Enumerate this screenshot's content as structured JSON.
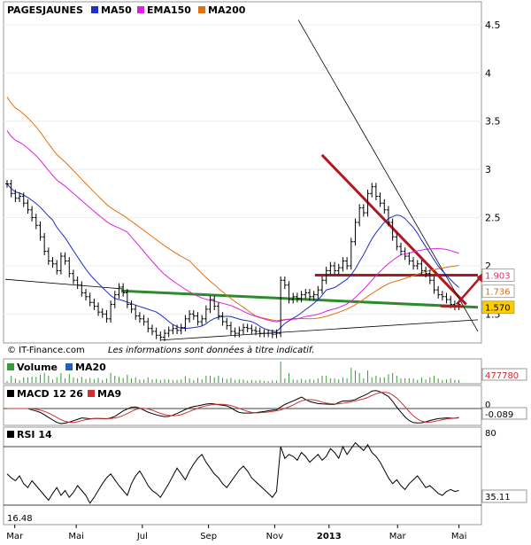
{
  "chart_data": {
    "type": "line",
    "title": "PAGESJAUNES",
    "legend": [
      {
        "name": "PAGESJAUNES",
        "color": "#000000"
      },
      {
        "name": "MA50",
        "color": "#1f2fbf"
      },
      {
        "name": "EMA150",
        "color": "#e020e0"
      },
      {
        "name": "MA200",
        "color": "#e07010"
      }
    ],
    "y_ticks": [
      1.5,
      2,
      2.5,
      3,
      3.5,
      4,
      4.5
    ],
    "ylim": [
      1.2,
      4.6
    ],
    "y_scale": "linear",
    "x_ticks": [
      "Mar",
      "Mai",
      "Jul",
      "Sep",
      "Nov",
      "2013",
      "Mar",
      "Mai"
    ],
    "price_labels": [
      {
        "text": "1.903",
        "value": 1.903,
        "color": "#e0306a",
        "bg": "#ffffff"
      },
      {
        "text": "1.736",
        "value": 1.736,
        "color": "#e07010",
        "bg": "#ffffff"
      },
      {
        "text": "1.570",
        "value": 1.57,
        "color": "#000000",
        "bg": "#ffcc00"
      }
    ],
    "price_series": [
      2.85,
      2.75,
      2.7,
      2.72,
      2.65,
      2.58,
      2.5,
      2.42,
      2.3,
      2.15,
      2.05,
      2.02,
      1.95,
      2.1,
      2.05,
      1.92,
      1.85,
      1.8,
      1.72,
      1.68,
      1.62,
      1.58,
      1.52,
      1.5,
      1.45,
      1.6,
      1.7,
      1.78,
      1.72,
      1.6,
      1.55,
      1.48,
      1.45,
      1.42,
      1.35,
      1.32,
      1.28,
      1.26,
      1.3,
      1.33,
      1.35,
      1.33,
      1.36,
      1.45,
      1.5,
      1.48,
      1.42,
      1.45,
      1.55,
      1.65,
      1.58,
      1.48,
      1.42,
      1.38,
      1.32,
      1.3,
      1.33,
      1.36,
      1.35,
      1.33,
      1.32,
      1.3,
      1.3,
      1.3,
      1.29,
      1.3,
      1.85,
      1.8,
      1.65,
      1.68,
      1.66,
      1.7,
      1.72,
      1.68,
      1.7,
      1.75,
      1.85,
      1.95,
      2.0,
      1.95,
      1.98,
      2.05,
      2.0,
      2.25,
      2.45,
      2.6,
      2.55,
      2.75,
      2.82,
      2.72,
      2.65,
      2.58,
      2.45,
      2.3,
      2.2,
      2.15,
      2.1,
      2.05,
      2.0,
      2.02,
      1.95,
      1.92,
      1.85,
      1.75,
      1.7,
      1.68,
      1.65,
      1.6,
      1.58,
      1.6
    ],
    "trendlines": [
      {
        "name": "red-downtrend",
        "color": "#b01820",
        "points": [
          [
            0.67,
            3.15
          ],
          [
            0.975,
            1.6
          ]
        ]
      },
      {
        "name": "red-resistance",
        "color": "#b01820",
        "points": [
          [
            0.655,
            1.903
          ],
          [
            1.0,
            1.903
          ]
        ]
      },
      {
        "name": "green-support",
        "color": "#2d8a2d",
        "points": [
          [
            0.245,
            1.74
          ],
          [
            1.0,
            1.57
          ]
        ]
      },
      {
        "name": "black-upper-line",
        "color": "#000000",
        "points": [
          [
            0.62,
            4.55
          ],
          [
            1.0,
            1.32
          ]
        ]
      },
      {
        "name": "black-lower-line",
        "color": "#000000",
        "points": [
          [
            0.33,
            1.23
          ],
          [
            1.0,
            1.44
          ]
        ]
      },
      {
        "name": "black-left-line",
        "color": "#000000",
        "points": [
          [
            0.0,
            1.86
          ],
          [
            0.25,
            1.76
          ]
        ]
      }
    ],
    "footer_text": "© IT-Finance.com",
    "disclaimer": "Les informations sont données à titre indicatif.",
    "volume_panel": {
      "legend": [
        {
          "name": "Volume",
          "color": "#3a9a3a"
        },
        {
          "name": "MA20",
          "color": "#1f5fbf"
        }
      ],
      "value_label": "477780"
    },
    "macd_panel": {
      "legend": [
        {
          "name": "MACD 12 26",
          "color": "#000000"
        },
        {
          "name": "MA9",
          "color": "#d03030"
        }
      ],
      "value_label": "-0.089",
      "y_tick": "0"
    },
    "rsi_panel": {
      "legend": [
        {
          "name": "RSI 14",
          "color": "#000000"
        }
      ],
      "y_tick": "80",
      "low_label": "16.48",
      "value_label": "35.11",
      "series": [
        52,
        48,
        45,
        50,
        42,
        38,
        45,
        40,
        35,
        30,
        25,
        32,
        38,
        30,
        35,
        28,
        33,
        40,
        35,
        30,
        22,
        28,
        35,
        42,
        48,
        52,
        46,
        40,
        35,
        30,
        42,
        50,
        55,
        48,
        40,
        35,
        32,
        28,
        35,
        42,
        50,
        58,
        52,
        46,
        55,
        62,
        68,
        72,
        64,
        58,
        52,
        48,
        42,
        38,
        44,
        50,
        56,
        60,
        55,
        48,
        44,
        40,
        36,
        32,
        28,
        34,
        80,
        68,
        72,
        70,
        66,
        74,
        70,
        64,
        68,
        72,
        66,
        70,
        78,
        74,
        68,
        80,
        72,
        78,
        84,
        80,
        76,
        82,
        74,
        70,
        64,
        56,
        48,
        42,
        46,
        40,
        36,
        42,
        46,
        50,
        44,
        38,
        40,
        36,
        32,
        30,
        34,
        36,
        34,
        35
      ]
    }
  }
}
